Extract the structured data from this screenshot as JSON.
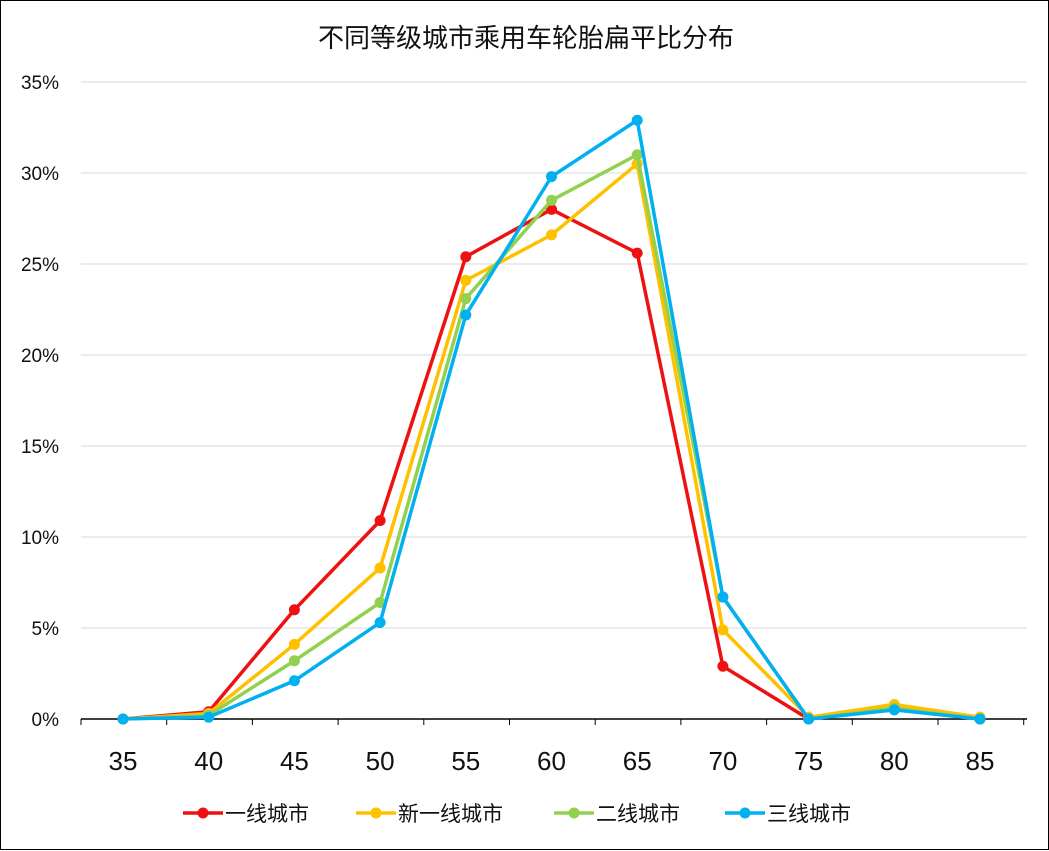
{
  "chart_data": {
    "type": "line",
    "title": "不同等级城市乘用车轮胎扁平比分布",
    "xlabel": "",
    "ylabel": "",
    "x": [
      35,
      40,
      45,
      50,
      55,
      60,
      65,
      70,
      75,
      80,
      85
    ],
    "ylim": [
      0,
      35
    ],
    "y_ticks": [
      "0%",
      "5%",
      "10%",
      "15%",
      "20%",
      "25%",
      "30%",
      "35%"
    ],
    "y_tick_values": [
      0,
      5,
      10,
      15,
      20,
      25,
      30,
      35
    ],
    "grid": true,
    "legend_position": "bottom",
    "series": [
      {
        "name": "一线城市",
        "color": "#ee1111",
        "values": [
          0,
          0.4,
          6.0,
          10.9,
          25.4,
          28.0,
          25.6,
          2.9,
          0,
          0.6,
          0
        ]
      },
      {
        "name": "新一线城市",
        "color": "#ffc000",
        "values": [
          0,
          0.3,
          4.1,
          8.3,
          24.1,
          26.6,
          30.5,
          4.9,
          0.1,
          0.8,
          0.1
        ]
      },
      {
        "name": "二线城市",
        "color": "#92d050",
        "values": [
          0,
          0.2,
          3.2,
          6.4,
          23.1,
          28.5,
          31.0,
          6.7,
          0,
          0.6,
          0
        ]
      },
      {
        "name": "三线城市",
        "color": "#00b0f0",
        "values": [
          0,
          0.1,
          2.1,
          5.3,
          22.2,
          29.8,
          32.9,
          6.7,
          0,
          0.5,
          0
        ]
      }
    ]
  }
}
